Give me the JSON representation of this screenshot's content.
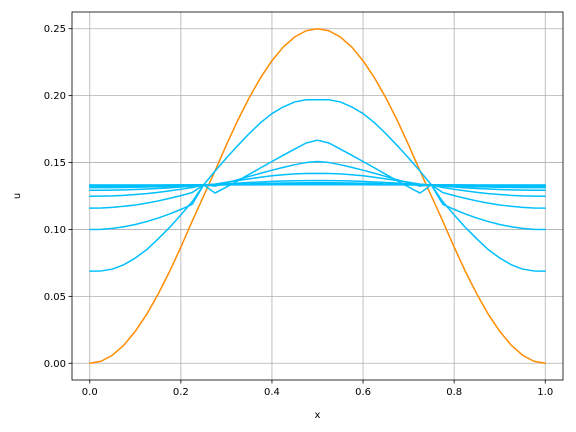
{
  "chart_data": {
    "type": "line",
    "title": "",
    "xlabel": "x",
    "ylabel": "u",
    "xlim": [
      -0.039,
      1.039
    ],
    "ylim": [
      -0.0125,
      0.2625
    ],
    "grid": true,
    "legend": "none",
    "x_ticks": [
      0.0,
      0.2,
      0.4,
      0.6,
      0.8,
      1.0
    ],
    "x_tick_labels": [
      "0.0",
      "0.2",
      "0.4",
      "0.6",
      "0.8",
      "1.0"
    ],
    "y_ticks": [
      0.0,
      0.05,
      0.1,
      0.15,
      0.2,
      0.25
    ],
    "y_tick_labels": [
      "0.00",
      "0.05",
      "0.10",
      "0.15",
      "0.20",
      "0.25"
    ],
    "x": [
      0.0,
      0.025,
      0.05,
      0.075,
      0.1,
      0.125,
      0.15,
      0.175,
      0.2,
      0.225,
      0.25,
      0.275,
      0.3,
      0.325,
      0.35,
      0.375,
      0.4,
      0.425,
      0.45,
      0.475,
      0.5,
      0.525,
      0.55,
      0.575,
      0.6,
      0.625,
      0.65,
      0.675,
      0.7,
      0.725,
      0.75,
      0.775,
      0.8,
      0.825,
      0.85,
      0.875,
      0.9,
      0.925,
      0.95,
      0.975,
      1.0
    ],
    "colors": {
      "initial": "#ff8c00",
      "evolved": "#00bfff",
      "grid": "#b0b0b0"
    },
    "series": [
      {
        "color": "#ff8c00",
        "values": [
          0.0,
          0.0015,
          0.0061,
          0.0136,
          0.0239,
          0.0366,
          0.0516,
          0.0684,
          0.0868,
          0.1063,
          0.125,
          0.1437,
          0.1632,
          0.1816,
          0.1984,
          0.2134,
          0.2261,
          0.2364,
          0.2439,
          0.2485,
          0.25,
          0.2485,
          0.2439,
          0.2364,
          0.2261,
          0.2134,
          0.1984,
          0.1816,
          0.1632,
          0.1437,
          0.125,
          0.1063,
          0.0868,
          0.0684,
          0.0516,
          0.0366,
          0.0239,
          0.0136,
          0.0061,
          0.0015,
          0.0
        ]
      },
      {
        "color": "#00bfff",
        "values": [
          0.0689,
          0.069,
          0.0704,
          0.0737,
          0.0787,
          0.0849,
          0.0929,
          0.1014,
          0.1109,
          0.1208,
          0.1333,
          0.1436,
          0.1534,
          0.1627,
          0.1716,
          0.1798,
          0.1866,
          0.1916,
          0.1953,
          0.1969,
          0.1969,
          0.1969,
          0.1953,
          0.1916,
          0.1866,
          0.1798,
          0.1716,
          0.1627,
          0.1534,
          0.1436,
          0.1333,
          0.1208,
          0.1109,
          0.1014,
          0.0929,
          0.0849,
          0.0787,
          0.0737,
          0.0704,
          0.069,
          0.0689
        ]
      },
      {
        "color": "#00bfff",
        "values": [
          0.1,
          0.1001,
          0.1008,
          0.102,
          0.1037,
          0.1059,
          0.1085,
          0.1115,
          0.115,
          0.1188,
          0.1333,
          0.1272,
          0.1317,
          0.1364,
          0.1412,
          0.146,
          0.1508,
          0.1555,
          0.1601,
          0.1646,
          0.1667,
          0.1646,
          0.1601,
          0.1555,
          0.1508,
          0.146,
          0.1412,
          0.1364,
          0.1317,
          0.1272,
          0.1333,
          0.1188,
          0.115,
          0.1115,
          0.1085,
          0.1059,
          0.1037,
          0.102,
          0.1008,
          0.1001,
          0.1
        ]
      },
      {
        "color": "#00bfff",
        "values": [
          0.1159,
          0.116,
          0.1165,
          0.1173,
          0.1183,
          0.1197,
          0.1213,
          0.1232,
          0.1253,
          0.1276,
          0.1333,
          0.1324,
          0.1348,
          0.1372,
          0.1396,
          0.142,
          0.1443,
          0.1464,
          0.1484,
          0.15,
          0.1508,
          0.15,
          0.1484,
          0.1464,
          0.1443,
          0.142,
          0.1396,
          0.1372,
          0.1348,
          0.1324,
          0.1333,
          0.1276,
          0.1253,
          0.1232,
          0.1213,
          0.1197,
          0.1183,
          0.1173,
          0.1165,
          0.116,
          0.1159
        ]
      },
      {
        "color": "#00bfff",
        "values": [
          0.1248,
          0.1249,
          0.1251,
          0.1255,
          0.1261,
          0.1268,
          0.1277,
          0.1288,
          0.13,
          0.1313,
          0.1333,
          0.1339,
          0.1353,
          0.1366,
          0.1378,
          0.139,
          0.1401,
          0.1409,
          0.1415,
          0.1418,
          0.1419,
          0.1418,
          0.1415,
          0.1409,
          0.1401,
          0.139,
          0.1378,
          0.1366,
          0.1353,
          0.1339,
          0.1333,
          0.1313,
          0.13,
          0.1288,
          0.1277,
          0.1268,
          0.1261,
          0.1255,
          0.1251,
          0.1249,
          0.1248
        ]
      },
      {
        "color": "#00bfff",
        "values": [
          0.1293,
          0.1293,
          0.1294,
          0.1296,
          0.1299,
          0.1302,
          0.1306,
          0.1311,
          0.1317,
          0.1323,
          0.1333,
          0.1335,
          0.1341,
          0.1346,
          0.1351,
          0.1355,
          0.1359,
          0.1362,
          0.1364,
          0.1365,
          0.1366,
          0.1365,
          0.1364,
          0.1362,
          0.1359,
          0.1355,
          0.1351,
          0.1346,
          0.1341,
          0.1335,
          0.1333,
          0.1323,
          0.1317,
          0.1311,
          0.1306,
          0.1302,
          0.1299,
          0.1296,
          0.1294,
          0.1293,
          0.1293
        ]
      },
      {
        "color": "#00bfff",
        "values": [
          0.1313,
          0.1313,
          0.1313,
          0.1314,
          0.1315,
          0.1317,
          0.1319,
          0.1321,
          0.1324,
          0.1327,
          0.1333,
          0.1333,
          0.1336,
          0.1338,
          0.1341,
          0.1343,
          0.1345,
          0.1347,
          0.1348,
          0.1349,
          0.1349,
          0.1349,
          0.1348,
          0.1347,
          0.1345,
          0.1343,
          0.1341,
          0.1338,
          0.1336,
          0.1333,
          0.1333,
          0.1327,
          0.1324,
          0.1321,
          0.1319,
          0.1317,
          0.1315,
          0.1314,
          0.1313,
          0.1313,
          0.1313
        ]
      },
      {
        "color": "#00bfff",
        "values": [
          0.1322,
          0.1322,
          0.1322,
          0.1323,
          0.1323,
          0.1324,
          0.1325,
          0.1327,
          0.1328,
          0.133,
          0.1333,
          0.1334,
          0.1335,
          0.1337,
          0.1338,
          0.1339,
          0.134,
          0.1341,
          0.1341,
          0.1342,
          0.1342,
          0.1342,
          0.1341,
          0.1341,
          0.134,
          0.1339,
          0.1338,
          0.1337,
          0.1335,
          0.1334,
          0.1333,
          0.133,
          0.1328,
          0.1327,
          0.1325,
          0.1324,
          0.1323,
          0.1323,
          0.1322,
          0.1322,
          0.1322
        ]
      },
      {
        "color": "#00bfff",
        "values": [
          0.1327,
          0.1327,
          0.1327,
          0.1327,
          0.1327,
          0.1328,
          0.1328,
          0.1329,
          0.133,
          0.1331,
          0.1333,
          0.1333,
          0.1334,
          0.1335,
          0.1335,
          0.1336,
          0.1336,
          0.1337,
          0.1337,
          0.1337,
          0.1338,
          0.1337,
          0.1337,
          0.1337,
          0.1336,
          0.1336,
          0.1335,
          0.1335,
          0.1334,
          0.1333,
          0.1333,
          0.1331,
          0.133,
          0.1329,
          0.1328,
          0.1328,
          0.1327,
          0.1327,
          0.1327,
          0.1327,
          0.1327
        ]
      },
      {
        "color": "#00bfff",
        "values": [
          0.1329,
          0.1329,
          0.1329,
          0.1329,
          0.133,
          0.133,
          0.133,
          0.1331,
          0.1331,
          0.1332,
          0.1333,
          0.1333,
          0.1334,
          0.1334,
          0.1335,
          0.1335,
          0.1335,
          0.1335,
          0.1336,
          0.1336,
          0.1336,
          0.1336,
          0.1336,
          0.1335,
          0.1335,
          0.1335,
          0.1335,
          0.1334,
          0.1334,
          0.1333,
          0.1333,
          0.1332,
          0.1331,
          0.1331,
          0.133,
          0.133,
          0.133,
          0.1329,
          0.1329,
          0.1329,
          0.1329
        ]
      },
      {
        "color": "#00bfff",
        "values": [
          0.1331,
          0.1331,
          0.1331,
          0.1331,
          0.1331,
          0.1331,
          0.1331,
          0.1332,
          0.1332,
          0.1332,
          0.1333,
          0.1333,
          0.1333,
          0.1334,
          0.1334,
          0.1334,
          0.1334,
          0.1334,
          0.1334,
          0.1334,
          0.1334,
          0.1334,
          0.1334,
          0.1334,
          0.1334,
          0.1334,
          0.1334,
          0.1334,
          0.1333,
          0.1333,
          0.1333,
          0.1332,
          0.1332,
          0.1332,
          0.1331,
          0.1331,
          0.1331,
          0.1331,
          0.1331,
          0.1331,
          0.1331
        ]
      },
      {
        "color": "#00bfff",
        "values": [
          0.1332,
          0.1332,
          0.1332,
          0.1332,
          0.1332,
          0.1332,
          0.1332,
          0.1332,
          0.1333,
          0.1333,
          0.1333,
          0.1333,
          0.1333,
          0.1333,
          0.1333,
          0.1333,
          0.1334,
          0.1334,
          0.1334,
          0.1334,
          0.1334,
          0.1334,
          0.1334,
          0.1334,
          0.1334,
          0.1333,
          0.1333,
          0.1333,
          0.1333,
          0.1333,
          0.1333,
          0.1333,
          0.1333,
          0.1332,
          0.1332,
          0.1332,
          0.1332,
          0.1332,
          0.1332,
          0.1332,
          0.1332
        ]
      }
    ]
  }
}
